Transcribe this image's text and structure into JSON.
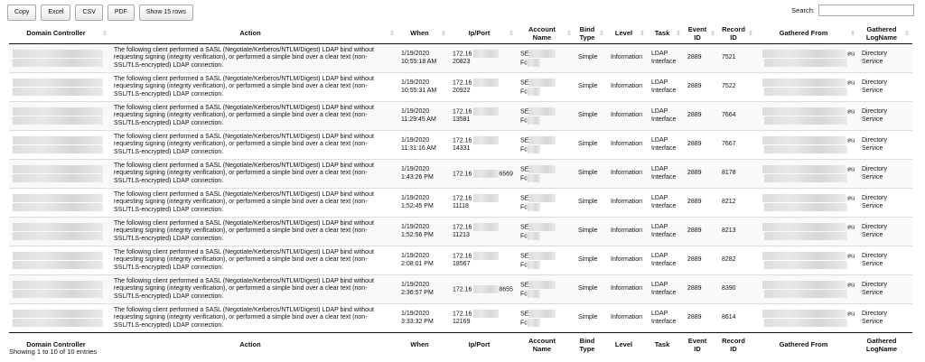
{
  "toolbar": {
    "buttons": [
      "Copy",
      "Excel",
      "CSV",
      "PDF",
      "Show 15 rows"
    ],
    "search_label": "Search:",
    "search_value": ""
  },
  "columns": [
    "Domain Controller",
    "Action",
    "When",
    "Ip/Port",
    "Account Name",
    "Bind Type",
    "Level",
    "Task",
    "Event ID",
    "Record ID",
    "Gathered From",
    "Gathered LogName"
  ],
  "action_text": "The following client performed a SASL (Negotiate/Kerberos/NTLM/Digest) LDAP bind without requesting signing (integrity verification), or performed a simple bind over a clear text (non-SSL/TLS-encrypted) LDAP connection.",
  "rows": [
    {
      "date": "1/19/2020",
      "time": "10:55:18 AM",
      "ip": "172.16",
      "port": "20823",
      "acct1": "SE",
      "acct2": "Fc",
      "bind": "Simple",
      "level": "Information",
      "task": "LDAP Interface",
      "event": "2889",
      "record": "7521",
      "from_suffix": "eu",
      "log": "Directory Service"
    },
    {
      "date": "1/19/2020",
      "time": "10:55:31 AM",
      "ip": "172.16",
      "port": "20922",
      "acct1": "SE",
      "acct2": "Fc",
      "bind": "Simple",
      "level": "Information",
      "task": "LDAP Interface",
      "event": "2889",
      "record": "7522",
      "from_suffix": "eu",
      "log": "Directory Service"
    },
    {
      "date": "1/19/2020",
      "time": "11:29:45 AM",
      "ip": "172.16",
      "port": "13581",
      "acct1": "SE",
      "acct2": "Fc",
      "bind": "Simple",
      "level": "Information",
      "task": "LDAP Interface",
      "event": "2889",
      "record": "7664",
      "from_suffix": "eu",
      "log": "Directory Service"
    },
    {
      "date": "1/19/2020",
      "time": "11:31:16 AM",
      "ip": "172.16",
      "port": "14331",
      "acct1": "SE",
      "acct2": "Fc",
      "bind": "Simple",
      "level": "Information",
      "task": "LDAP Interface",
      "event": "2889",
      "record": "7667",
      "from_suffix": "eu",
      "log": "Directory Service"
    },
    {
      "date": "1/19/2020",
      "time": "1:43:26 PM",
      "ip": "172.16",
      "port": "6569",
      "acct1": "SE",
      "acct2": "Fc",
      "bind": "Simple",
      "level": "Information",
      "task": "LDAP Interface",
      "event": "2889",
      "record": "8178",
      "from_suffix": "eu",
      "log": "Directory Service"
    },
    {
      "date": "1/19/2020",
      "time": "1:52:45 PM",
      "ip": "172.16",
      "port": "11118",
      "acct1": "SE",
      "acct2": "Fc",
      "bind": "Simple",
      "level": "Information",
      "task": "LDAP Interface",
      "event": "2889",
      "record": "8212",
      "from_suffix": "eu",
      "log": "Directory Service"
    },
    {
      "date": "1/19/2020",
      "time": "1:52:56 PM",
      "ip": "172.16",
      "port": "11213",
      "acct1": "SE",
      "acct2": "Fc",
      "bind": "Simple",
      "level": "Information",
      "task": "LDAP Interface",
      "event": "2889",
      "record": "8213",
      "from_suffix": "eu",
      "log": "Directory Service"
    },
    {
      "date": "1/19/2020",
      "time": "2:08:01 PM",
      "ip": "172.16",
      "port": "18567",
      "acct1": "SE",
      "acct2": "Fc",
      "bind": "Simple",
      "level": "Information",
      "task": "LDAP Interface",
      "event": "2889",
      "record": "8282",
      "from_suffix": "eu",
      "log": "Directory Service"
    },
    {
      "date": "1/19/2020",
      "time": "2:36:57 PM",
      "ip": "172.16",
      "port": "8655",
      "acct1": "SE",
      "acct2": "Fc",
      "bind": "Simple",
      "level": "Information",
      "task": "LDAP Interface",
      "event": "2889",
      "record": "8390",
      "from_suffix": "eu",
      "log": "Directory Service"
    },
    {
      "date": "1/19/2020",
      "time": "3:33:32 PM",
      "ip": "172.16",
      "port": "12169",
      "acct1": "SE",
      "acct2": "Fc",
      "bind": "Simple",
      "level": "Information",
      "task": "LDAP Interface",
      "event": "2889",
      "record": "8614",
      "from_suffix": "eu",
      "log": "Directory Service"
    }
  ],
  "info": "Showing 1 to 10 of 10 entries"
}
